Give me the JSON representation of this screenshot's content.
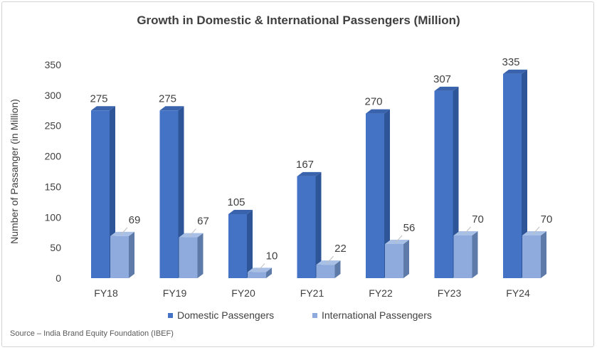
{
  "chart_data": {
    "type": "bar",
    "title": "Growth in Domestic & International Passengers (Million)",
    "xlabel": "",
    "ylabel": "Number of Passanger (in Million)",
    "ylim": [
      0,
      350
    ],
    "yticks": [
      0,
      50,
      100,
      150,
      200,
      250,
      300,
      350
    ],
    "categories": [
      "FY18",
      "FY19",
      "FY20",
      "FY21",
      "FY22",
      "FY23",
      "FY24"
    ],
    "series": [
      {
        "name": "Domestic Passengers",
        "values": [
          275,
          275,
          105,
          167,
          270,
          307,
          335
        ]
      },
      {
        "name": "International Passengers",
        "values": [
          69,
          67,
          10,
          22,
          56,
          70,
          70
        ]
      }
    ],
    "legend_position": "bottom",
    "grid": false
  },
  "colors": {
    "domestic_front": "#4472C4",
    "domestic_side": "#2E5597",
    "domestic_top": "#3A63AD",
    "international_front": "#8FAADC",
    "international_side": "#5E7AA8",
    "international_top": "#A9C0E6",
    "text": "#404040"
  },
  "source": "Source – India Brand Equity Foundation (IBEF)"
}
